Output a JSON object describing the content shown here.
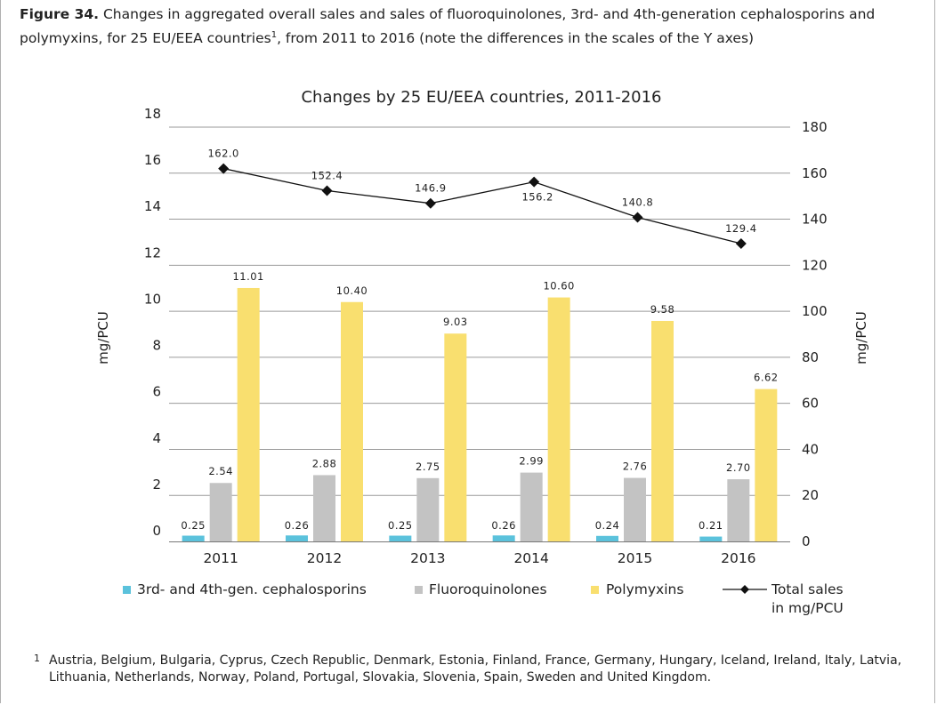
{
  "caption": {
    "label": "Figure 34.",
    "text": "Changes in aggregated overall sales and sales of fluoroquinolones, 3rd- and 4th-generation cephalosporins and polymyxins, for 25 EU/EEA countries",
    "marker": "1",
    "text_end": ", from 2011 to 2016 (note the differences in the scales of the Y axes)"
  },
  "footnote": {
    "marker": "1",
    "text": "Austria, Belgium, Bulgaria, Cyprus, Czech Republic, Denmark, Estonia, Finland, France, Germany, Hungary, Iceland, Ireland, Italy, Latvia, Lithuania, Netherlands, Norway, Poland, Portugal, Slovakia, Slovenia, Spain, Sweden and United Kingdom."
  },
  "colors": {
    "cephalosporins": "#5bc2dc",
    "fluoroquinolones": "#c3c3c3",
    "polymyxins": "#f9df6f",
    "total": "#111111",
    "grid": "#9a9a9a"
  },
  "chart_data": {
    "type": "bar",
    "title": "Changes by 25 EU/EEA countries, 2011-2016",
    "categories": [
      "2011",
      "2012",
      "2013",
      "2014",
      "2015",
      "2016"
    ],
    "ylabel_left": "mg/PCU",
    "ylabel_right": "mg/PCU",
    "ylim_left": [
      0,
      18
    ],
    "yticks_left": [
      "0",
      "2",
      "4",
      "6",
      "8",
      "10",
      "12",
      "14",
      "16",
      "18"
    ],
    "ylim_right": [
      0,
      180
    ],
    "yticks_right": [
      "0",
      "20",
      "40",
      "60",
      "80",
      "100",
      "120",
      "140",
      "160",
      "180"
    ],
    "series": [
      {
        "name": "3rd- and 4th-gen. cephalosporins",
        "axis": "left",
        "values": [
          0.25,
          0.26,
          0.25,
          0.26,
          0.24,
          0.21
        ],
        "labels": [
          "0.25",
          "0.26",
          "0.25",
          "0.26",
          "0.24",
          "0.21"
        ]
      },
      {
        "name": "Fluoroquinolones",
        "axis": "left",
        "values": [
          2.54,
          2.88,
          2.75,
          2.99,
          2.76,
          2.7
        ],
        "labels": [
          "2.54",
          "2.88",
          "2.75",
          "2.99",
          "2.76",
          "2.70"
        ]
      },
      {
        "name": "Polymyxins",
        "axis": "left",
        "values": [
          11.01,
          10.4,
          9.03,
          10.6,
          9.58,
          6.62
        ],
        "labels": [
          "11.01",
          "10.40",
          "9.03",
          "10.60",
          "9.58",
          "6.62"
        ]
      },
      {
        "name": "Total sales in mg/PCU",
        "type": "line",
        "axis": "right",
        "values": [
          162.0,
          152.4,
          146.9,
          156.2,
          140.8,
          129.4
        ],
        "labels": [
          "162.0",
          "152.4",
          "146.9",
          "156.2",
          "140.8",
          "129.4"
        ]
      }
    ],
    "legend": [
      {
        "lines": [
          "3rd- and 4th-gen. cephalosporins"
        ]
      },
      {
        "lines": [
          "Fluoroquinolones"
        ]
      },
      {
        "lines": [
          "Polymyxins"
        ]
      },
      {
        "lines": [
          "Total sales",
          "in mg/PCU"
        ]
      }
    ],
    "grid": true,
    "legend_position": "bottom"
  }
}
